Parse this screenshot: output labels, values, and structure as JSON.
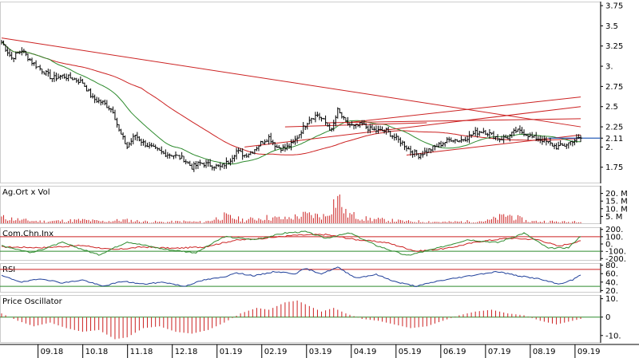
{
  "chart_data": [
    {
      "type": "ohlc",
      "panel": "price",
      "y_ticks": [
        "3.75",
        "3.5",
        "3.25",
        "3.",
        "2.75",
        "2.5",
        "2.25",
        "2.11",
        "2.",
        "1.75"
      ],
      "y_tick_values": [
        3.75,
        3.5,
        3.25,
        3.0,
        2.75,
        2.5,
        2.25,
        2.11,
        2.0,
        1.75
      ],
      "ylim": [
        1.55,
        3.8
      ],
      "last_price": 2.11,
      "x_ticks": [
        "09.18",
        "10.18",
        "11.18",
        "12.18",
        "01.19",
        "02.19",
        "03.19",
        "04.19",
        "05.19",
        "06.19",
        "07.19",
        "08.19",
        "09.19"
      ],
      "key_closes": [
        [
          0,
          3.3
        ],
        [
          5,
          3.1
        ],
        [
          10,
          3.2
        ],
        [
          15,
          3.05
        ],
        [
          20,
          2.95
        ],
        [
          25,
          2.85
        ],
        [
          30,
          2.88
        ],
        [
          35,
          2.85
        ],
        [
          40,
          2.8
        ],
        [
          45,
          2.6
        ],
        [
          50,
          2.55
        ],
        [
          55,
          2.45
        ],
        [
          58,
          2.2
        ],
        [
          62,
          2.0
        ],
        [
          66,
          2.15
        ],
        [
          70,
          2.05
        ],
        [
          75,
          1.98
        ],
        [
          80,
          1.92
        ],
        [
          85,
          1.9
        ],
        [
          90,
          1.85
        ],
        [
          94,
          1.75
        ],
        [
          98,
          1.8
        ],
        [
          103,
          1.78
        ],
        [
          108,
          1.75
        ],
        [
          112,
          1.82
        ],
        [
          116,
          1.95
        ],
        [
          120,
          1.9
        ],
        [
          124,
          1.95
        ],
        [
          128,
          2.05
        ],
        [
          132,
          2.12
        ],
        [
          136,
          2.0
        ],
        [
          140,
          1.98
        ],
        [
          144,
          2.05
        ],
        [
          148,
          2.2
        ],
        [
          152,
          2.35
        ],
        [
          156,
          2.4
        ],
        [
          160,
          2.3
        ],
        [
          163,
          2.2
        ],
        [
          166,
          2.45
        ],
        [
          170,
          2.3
        ],
        [
          174,
          2.25
        ],
        [
          178,
          2.28
        ],
        [
          182,
          2.22
        ],
        [
          186,
          2.2
        ],
        [
          190,
          2.2
        ],
        [
          194,
          2.12
        ],
        [
          198,
          2.05
        ],
        [
          202,
          1.95
        ],
        [
          206,
          1.9
        ],
        [
          210,
          1.95
        ],
        [
          214,
          2.0
        ],
        [
          218,
          2.05
        ],
        [
          222,
          2.1
        ],
        [
          226,
          2.08
        ],
        [
          230,
          2.12
        ],
        [
          234,
          2.18
        ],
        [
          238,
          2.2
        ],
        [
          242,
          2.15
        ],
        [
          246,
          2.1
        ],
        [
          250,
          2.12
        ],
        [
          254,
          2.2
        ],
        [
          258,
          2.18
        ],
        [
          262,
          2.12
        ],
        [
          266,
          2.1
        ],
        [
          270,
          2.05
        ],
        [
          274,
          2.0
        ],
        [
          278,
          2.02
        ],
        [
          282,
          2.08
        ],
        [
          286,
          2.11
        ]
      ],
      "moving_averages": [
        {
          "color": "#2e8b2e",
          "kind": "short"
        },
        {
          "color": "#cc2222",
          "kind": "long"
        }
      ],
      "trendlines_color": "#cc2222",
      "reference_line_color": "#2a5fb8"
    },
    {
      "type": "bar",
      "panel": "volume",
      "title": "Ag.Ort x Vol",
      "y_ticks": [
        "20. M",
        "15. M",
        "10. M",
        "5. M"
      ],
      "y_tick_values": [
        20,
        15,
        10,
        5
      ],
      "ylim": [
        0,
        25
      ],
      "bar_color": "#cc2222",
      "key_values": [
        [
          0,
          5
        ],
        [
          10,
          3
        ],
        [
          20,
          2
        ],
        [
          30,
          2.5
        ],
        [
          40,
          3
        ],
        [
          50,
          2
        ],
        [
          60,
          3
        ],
        [
          70,
          2
        ],
        [
          80,
          1.5
        ],
        [
          90,
          2
        ],
        [
          100,
          1.5
        ],
        [
          110,
          6
        ],
        [
          120,
          3
        ],
        [
          130,
          5
        ],
        [
          140,
          4
        ],
        [
          150,
          7
        ],
        [
          160,
          6
        ],
        [
          166,
          21
        ],
        [
          170,
          8
        ],
        [
          180,
          4
        ],
        [
          190,
          3
        ],
        [
          200,
          2
        ],
        [
          210,
          2
        ],
        [
          220,
          1.5
        ],
        [
          230,
          2
        ],
        [
          240,
          2.5
        ],
        [
          250,
          7
        ],
        [
          260,
          2
        ],
        [
          270,
          2
        ],
        [
          280,
          1.5
        ],
        [
          286,
          3
        ]
      ]
    },
    {
      "type": "line",
      "panel": "cci",
      "title": "Com.Chn.Inx",
      "y_ticks": [
        "200.",
        "100.",
        "0.",
        "-100.",
        "-200."
      ],
      "y_tick_values": [
        200,
        100,
        0,
        -100,
        -200
      ],
      "ylim": [
        -230,
        230
      ],
      "reference_levels": [
        100,
        -100
      ],
      "series": [
        {
          "color": "#cc2222",
          "key_values": [
            [
              0,
              -40
            ],
            [
              20,
              -50
            ],
            [
              40,
              -20
            ],
            [
              55,
              -80
            ],
            [
              70,
              -40
            ],
            [
              85,
              -60
            ],
            [
              100,
              -40
            ],
            [
              115,
              50
            ],
            [
              130,
              80
            ],
            [
              145,
              120
            ],
            [
              160,
              130
            ],
            [
              175,
              60
            ],
            [
              190,
              20
            ],
            [
              205,
              -100
            ],
            [
              220,
              -60
            ],
            [
              235,
              30
            ],
            [
              250,
              80
            ],
            [
              265,
              60
            ],
            [
              275,
              -30
            ],
            [
              286,
              40
            ]
          ]
        },
        {
          "color": "#2e8b2e",
          "key_values": [
            [
              0,
              -20
            ],
            [
              15,
              -120
            ],
            [
              30,
              20
            ],
            [
              48,
              -150
            ],
            [
              62,
              30
            ],
            [
              80,
              -70
            ],
            [
              96,
              -120
            ],
            [
              110,
              100
            ],
            [
              125,
              60
            ],
            [
              140,
              150
            ],
            [
              150,
              170
            ],
            [
              160,
              80
            ],
            [
              172,
              150
            ],
            [
              185,
              -20
            ],
            [
              200,
              -160
            ],
            [
              215,
              -60
            ],
            [
              230,
              60
            ],
            [
              245,
              20
            ],
            [
              258,
              150
            ],
            [
              270,
              -60
            ],
            [
              280,
              -50
            ],
            [
              286,
              110
            ]
          ]
        }
      ]
    },
    {
      "type": "line",
      "panel": "rsi",
      "title": "RSI",
      "y_ticks": [
        "80.",
        "60.",
        "40.",
        "20."
      ],
      "y_tick_values": [
        80,
        60,
        40,
        20
      ],
      "ylim": [
        15,
        85
      ],
      "reference_levels": [
        70,
        30
      ],
      "series": [
        {
          "color": "#1f3f9a",
          "key_values": [
            [
              0,
              55
            ],
            [
              10,
              40
            ],
            [
              20,
              48
            ],
            [
              30,
              38
            ],
            [
              40,
              45
            ],
            [
              50,
              30
            ],
            [
              60,
              42
            ],
            [
              70,
              35
            ],
            [
              80,
              40
            ],
            [
              90,
              30
            ],
            [
              100,
              45
            ],
            [
              110,
              52
            ],
            [
              115,
              62
            ],
            [
              125,
              55
            ],
            [
              135,
              65
            ],
            [
              145,
              60
            ],
            [
              150,
              72
            ],
            [
              158,
              60
            ],
            [
              166,
              75
            ],
            [
              175,
              50
            ],
            [
              185,
              58
            ],
            [
              195,
              40
            ],
            [
              205,
              30
            ],
            [
              215,
              42
            ],
            [
              225,
              50
            ],
            [
              235,
              58
            ],
            [
              245,
              65
            ],
            [
              255,
              55
            ],
            [
              265,
              48
            ],
            [
              275,
              35
            ],
            [
              282,
              45
            ],
            [
              286,
              58
            ]
          ]
        }
      ]
    },
    {
      "type": "bar",
      "panel": "price_oscillator",
      "title": "Price Oscillator",
      "y_ticks": [
        "10.",
        "0",
        "-10."
      ],
      "y_tick_values": [
        10,
        0,
        -10
      ],
      "ylim": [
        -14,
        12
      ],
      "bar_color": "#cc2222",
      "key_values": [
        [
          0,
          2
        ],
        [
          8,
          -2
        ],
        [
          16,
          -5
        ],
        [
          24,
          -3
        ],
        [
          32,
          -6
        ],
        [
          40,
          -8
        ],
        [
          48,
          -7
        ],
        [
          56,
          -12
        ],
        [
          62,
          -11
        ],
        [
          70,
          -6
        ],
        [
          78,
          -5
        ],
        [
          86,
          -8
        ],
        [
          94,
          -9
        ],
        [
          102,
          -7
        ],
        [
          110,
          -3
        ],
        [
          118,
          2
        ],
        [
          126,
          5
        ],
        [
          132,
          4
        ],
        [
          140,
          8
        ],
        [
          146,
          9
        ],
        [
          152,
          6
        ],
        [
          158,
          3
        ],
        [
          164,
          5
        ],
        [
          170,
          2
        ],
        [
          178,
          -1
        ],
        [
          186,
          -2
        ],
        [
          194,
          -4
        ],
        [
          202,
          -6
        ],
        [
          210,
          -5
        ],
        [
          218,
          -2
        ],
        [
          226,
          1
        ],
        [
          234,
          3
        ],
        [
          242,
          4
        ],
        [
          250,
          2
        ],
        [
          258,
          1
        ],
        [
          266,
          -2
        ],
        [
          274,
          -4
        ],
        [
          282,
          -2
        ],
        [
          286,
          -1
        ]
      ]
    }
  ]
}
